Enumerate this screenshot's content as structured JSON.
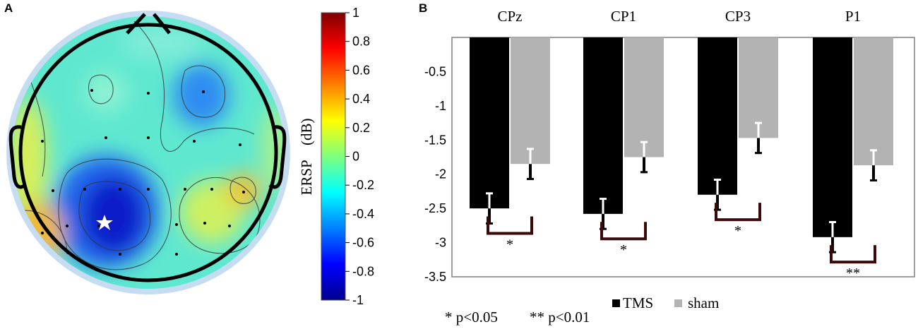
{
  "panel_a": {
    "label": "A",
    "colorbar": {
      "title": "ERSP　(dB)",
      "ticks": [
        "1",
        "0.8",
        "0.6",
        "0.4",
        "0.2",
        "0",
        "-0.2",
        "-0.4",
        "-0.6",
        "-0.8",
        "-1"
      ],
      "range": [
        -1,
        1
      ]
    },
    "marker": "star"
  },
  "panel_b": {
    "label": "B"
  },
  "chart_data": {
    "type": "bar",
    "categories": [
      "CPz",
      "CP1",
      "CP3",
      "P1"
    ],
    "series": [
      {
        "name": "TMS",
        "color": "#000000",
        "values": [
          -2.5,
          -2.58,
          -2.3,
          -2.92
        ],
        "errors": [
          0.22,
          0.22,
          0.22,
          0.22
        ]
      },
      {
        "name": "sham",
        "color": "#b3b3b3",
        "values": [
          -1.85,
          -1.75,
          -1.47,
          -1.87
        ],
        "errors": [
          0.22,
          0.22,
          0.22,
          0.22
        ]
      }
    ],
    "ylim": [
      -3.5,
      0
    ],
    "yticks": [
      -0.5,
      -1,
      -1.5,
      -2,
      -2.5,
      -3,
      -3.5
    ],
    "ytick_labels": [
      "-0.5",
      "-1",
      "-1.5",
      "-2",
      "-2.5",
      "-3",
      "-3.5"
    ],
    "significance": [
      "*",
      "*",
      "*",
      "**"
    ],
    "legend": [
      "TMS",
      "sham"
    ],
    "footnote": {
      "p05": "* p<0.05",
      "p01": "** p<0.01"
    }
  }
}
